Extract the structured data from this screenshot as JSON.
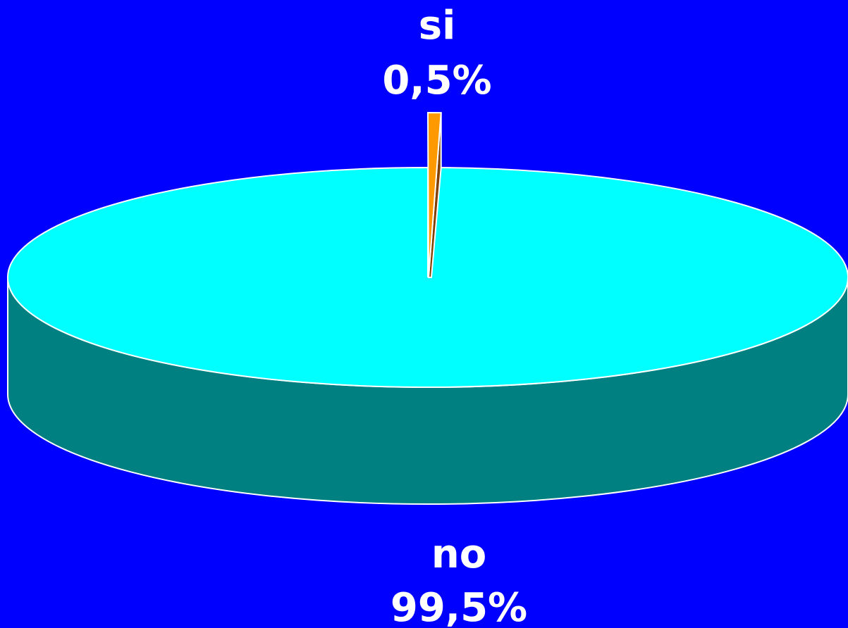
{
  "chart_data": {
    "type": "pie",
    "style": "3d",
    "slices": [
      {
        "label": "si",
        "value": 0.5,
        "value_text": "0,5%",
        "color": "#ff9900",
        "side_color": "#804000",
        "exploded": true
      },
      {
        "label": "no",
        "value": 99.5,
        "value_text": "99,5%",
        "color": "#00ffff",
        "side_color": "#008080",
        "exploded": false
      }
    ],
    "title": "",
    "legend": "none"
  },
  "colors": {
    "background": "#0000ff",
    "outline": "#ffffff",
    "label": "#ffffff"
  }
}
